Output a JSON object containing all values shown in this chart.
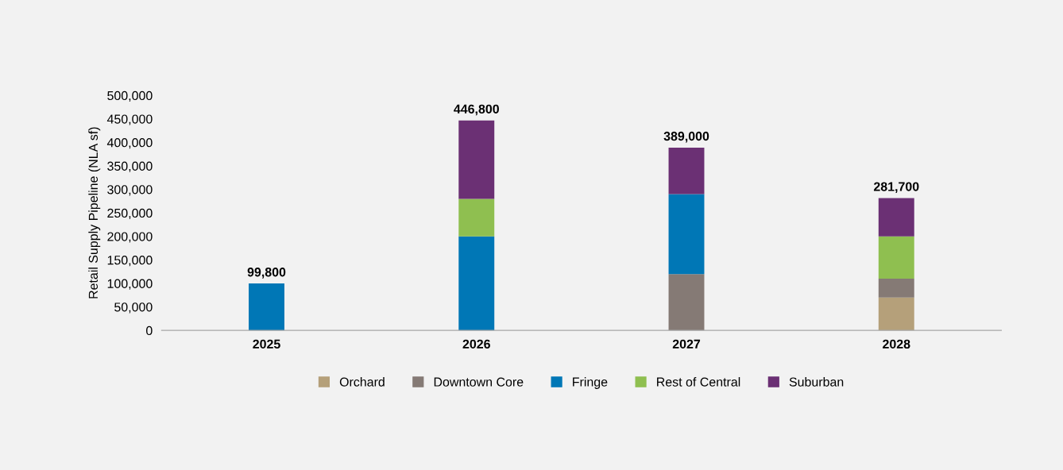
{
  "chart_data": {
    "type": "bar",
    "stacked": true,
    "ylabel": "Retail Supply Pipeline (NLA sf)",
    "categories": [
      "2025",
      "2026",
      "2027",
      "2028"
    ],
    "series": [
      {
        "name": "Orchard",
        "color": "#b5a07a",
        "values": [
          0,
          0,
          0,
          70000
        ]
      },
      {
        "name": "Downtown Core",
        "color": "#857a75",
        "values": [
          0,
          0,
          120000,
          40000
        ]
      },
      {
        "name": "Fringe",
        "color": "#0077b6",
        "values": [
          99800,
          200000,
          170000,
          0
        ]
      },
      {
        "name": "Rest of Central",
        "color": "#8fbf50",
        "values": [
          0,
          80000,
          0,
          90000
        ]
      },
      {
        "name": "Suburban",
        "color": "#6b3074",
        "values": [
          0,
          166800,
          99000,
          81700
        ]
      }
    ],
    "totals": [
      "99,800",
      "446,800",
      "389,000",
      "281,700"
    ],
    "ylim": [
      0,
      500000
    ],
    "yticks": [
      0,
      {
        "value": 50000,
        "label": "50,000"
      },
      {
        "value": 100000,
        "label": "100,000"
      },
      {
        "value": 150000,
        "label": "150,000"
      },
      {
        "value": 200000,
        "label": "200,000"
      },
      {
        "value": 250000,
        "label": "250,000"
      },
      {
        "value": 300000,
        "label": "300,000"
      },
      {
        "value": 350000,
        "label": "350,000"
      },
      {
        "value": 400000,
        "label": "400,000"
      },
      {
        "value": 450000,
        "label": "450,000"
      },
      {
        "value": 500000,
        "label": "500,000"
      }
    ],
    "grid": false,
    "legend": "bottom"
  }
}
